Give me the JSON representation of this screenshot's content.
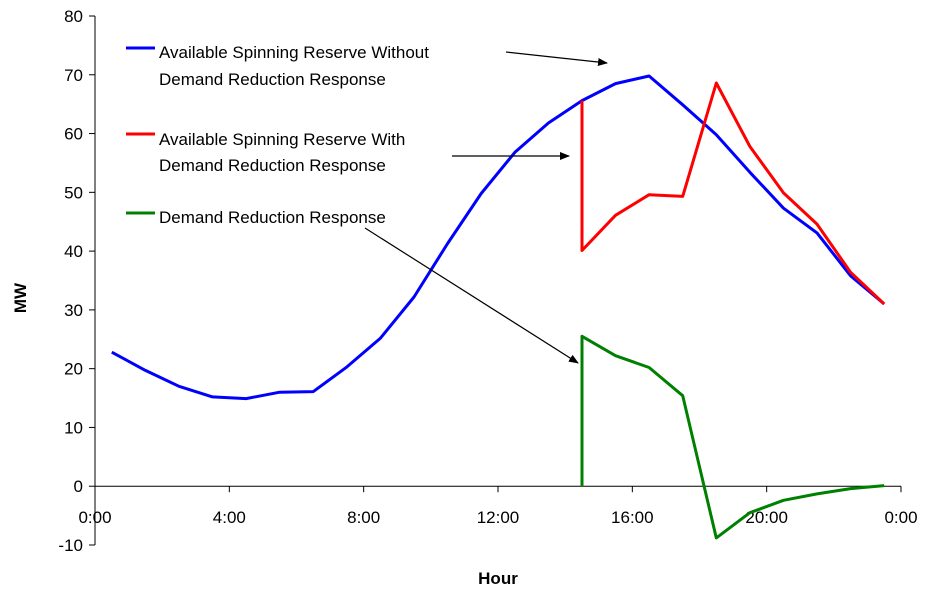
{
  "chart_data": {
    "type": "line",
    "title": "",
    "xlabel": "Hour",
    "ylabel": "MW",
    "xlim": [
      0,
      24
    ],
    "ylim": [
      -10,
      80
    ],
    "x_ticks": [
      0,
      4,
      8,
      12,
      16,
      20,
      24
    ],
    "x_tick_labels": [
      "0:00",
      "4:00",
      "8:00",
      "12:00",
      "16:00",
      "20:00",
      "0:00"
    ],
    "y_ticks": [
      -10,
      0,
      10,
      20,
      30,
      40,
      50,
      60,
      70,
      80
    ],
    "y_tick_labels": [
      "-10",
      "0",
      "10",
      "20",
      "30",
      "40",
      "50",
      "60",
      "70",
      "80"
    ],
    "grid": false,
    "legend_position": "top-left",
    "series": [
      {
        "name": "Available Spinning Reserve Without Demand Reduction Response",
        "legend_lines": [
          "Available Spinning Reserve Without",
          "Demand Reduction Response"
        ],
        "color": "#0000ff",
        "x": [
          0.5,
          1.5,
          2.5,
          3.5,
          4.5,
          5.5,
          6.5,
          7.5,
          8.5,
          9.5,
          10.5,
          11.5,
          12.5,
          13.5,
          14.5,
          15.5,
          16.5,
          17.5,
          18.5,
          19.5,
          20.5,
          21.5,
          22.5,
          23.5
        ],
        "y": [
          22.8,
          19.7,
          17.0,
          15.2,
          14.9,
          16.0,
          16.1,
          20.3,
          25.2,
          32.2,
          41.3,
          49.8,
          56.8,
          61.8,
          65.6,
          68.5,
          69.8,
          64.9,
          59.8,
          53.4,
          47.3,
          43.1,
          35.8,
          31.0
        ]
      },
      {
        "name": "Available Spinning Reserve With Demand Reduction Response",
        "legend_lines": [
          "Available Spinning Reserve With",
          "Demand Reduction Response"
        ],
        "color": "#ff0000",
        "x": [
          14.5,
          14.5,
          15.5,
          16.5,
          17.5,
          18.5,
          19.5,
          20.5,
          21.5,
          22.5,
          23.5
        ],
        "y": [
          65.6,
          40.1,
          46.1,
          49.6,
          49.3,
          68.6,
          57.8,
          49.9,
          44.6,
          36.4,
          31.0
        ]
      },
      {
        "name": "Demand Reduction Response",
        "legend_lines": [
          "Demand Reduction Response"
        ],
        "color": "#008000",
        "x": [
          14.5,
          14.5,
          15.5,
          16.5,
          17.5,
          18.5,
          19.5,
          20.5,
          21.5,
          22.5,
          23.5
        ],
        "y": [
          0.0,
          25.5,
          22.2,
          20.2,
          15.4,
          -8.8,
          -4.5,
          -2.4,
          -1.3,
          -0.4,
          0.1
        ]
      }
    ]
  }
}
